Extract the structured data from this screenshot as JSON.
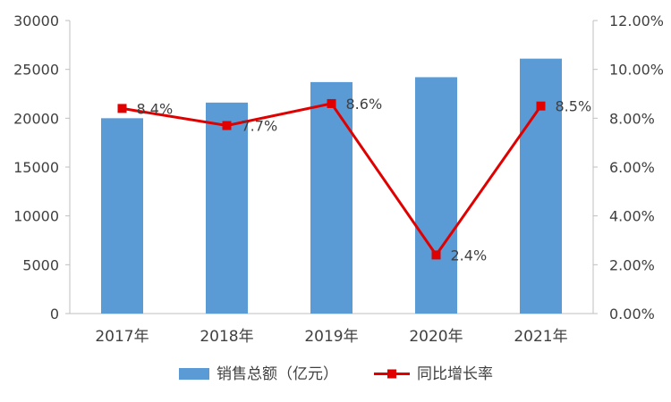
{
  "chart_data": {
    "type": "bar",
    "categories": [
      "2017年",
      "2018年",
      "2019年",
      "2020年",
      "2021年"
    ],
    "series": [
      {
        "name": "销售总额（亿元）",
        "type": "bar",
        "axis": "left",
        "values": [
          20000,
          21600,
          23700,
          24200,
          26100
        ],
        "color": "#5b9bd5"
      },
      {
        "name": "同比增长率",
        "type": "line",
        "axis": "right",
        "values": [
          8.4,
          7.7,
          8.6,
          2.4,
          8.5
        ],
        "labels": [
          "8.4%",
          "7.7%",
          "8.6%",
          "2.4%",
          "8.5%"
        ],
        "color": "#e00000"
      }
    ],
    "y_left": {
      "ylim": [
        0,
        30000
      ],
      "ticks": [
        "0",
        "5000",
        "10000",
        "15000",
        "20000",
        "25000",
        "30000"
      ]
    },
    "y_right": {
      "ylim": [
        0,
        12
      ],
      "ticks": [
        "0.00%",
        "2.00%",
        "4.00%",
        "6.00%",
        "8.00%",
        "10.00%",
        "12.00%"
      ]
    },
    "grid": false,
    "legend_position": "bottom"
  }
}
